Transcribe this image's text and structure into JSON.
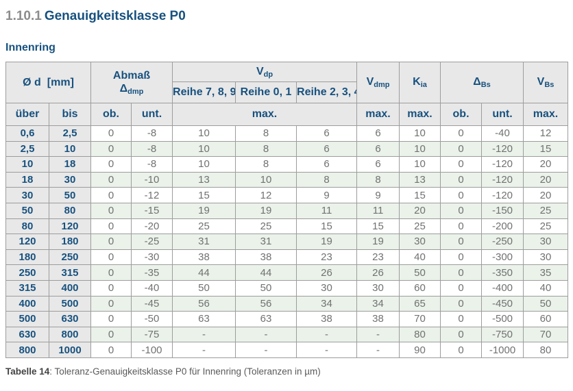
{
  "page": {
    "section_number": "1.10.1",
    "section_name": "Genauigkeitsklasse P0",
    "subtitle": "Innenring",
    "caption_label": "Tabelle 14",
    "caption_text": ": Toleranz-Genauigkeitsklasse P0 für Innenring (Toleranzen in µm)"
  },
  "colors": {
    "accent_blue": "#17517f",
    "header_gray": "#e8e8e8",
    "stripe_green": "#eaf2ea",
    "border_gray": "#9c9c9c",
    "value_gray": "#717171",
    "section_number_gray": "#8c8c8c"
  },
  "table": {
    "header": {
      "d_label": "Ø d",
      "d_unit": "[mm]",
      "abmass_label": "Abmaß",
      "abmass_symbol": "Δ",
      "abmass_sub": "dmp",
      "vdp_base": "V",
      "vdp_sub": "dp",
      "reihe_789": "Reihe 7, 8, 9",
      "reihe_01": "Reihe 0, 1",
      "reihe_234": "Reihe 2, 3, 4",
      "vdmp_base": "V",
      "vdmp_sub": "dmp",
      "kia_base": "K",
      "kia_sub": "ia",
      "dbs_base": "Δ",
      "dbs_sub": "Bs",
      "vbs_base": "V",
      "vbs_sub": "Bs",
      "ueber": "über",
      "bis": "bis",
      "ob": "ob.",
      "unt": "unt.",
      "max": "max."
    },
    "rows": [
      [
        "0,6",
        "2,5",
        "0",
        "-8",
        "10",
        "8",
        "6",
        "6",
        "10",
        "0",
        "-40",
        "12"
      ],
      [
        "2,5",
        "10",
        "0",
        "-8",
        "10",
        "8",
        "6",
        "6",
        "10",
        "0",
        "-120",
        "15"
      ],
      [
        "10",
        "18",
        "0",
        "-8",
        "10",
        "8",
        "6",
        "6",
        "10",
        "0",
        "-120",
        "20"
      ],
      [
        "18",
        "30",
        "0",
        "-10",
        "13",
        "10",
        "8",
        "8",
        "13",
        "0",
        "-120",
        "20"
      ],
      [
        "30",
        "50",
        "0",
        "-12",
        "15",
        "12",
        "9",
        "9",
        "15",
        "0",
        "-120",
        "20"
      ],
      [
        "50",
        "80",
        "0",
        "-15",
        "19",
        "19",
        "11",
        "11",
        "20",
        "0",
        "-150",
        "25"
      ],
      [
        "80",
        "120",
        "0",
        "-20",
        "25",
        "25",
        "15",
        "15",
        "25",
        "0",
        "-200",
        "25"
      ],
      [
        "120",
        "180",
        "0",
        "-25",
        "31",
        "31",
        "19",
        "19",
        "30",
        "0",
        "-250",
        "30"
      ],
      [
        "180",
        "250",
        "0",
        "-30",
        "38",
        "38",
        "23",
        "23",
        "40",
        "0",
        "-300",
        "30"
      ],
      [
        "250",
        "315",
        "0",
        "-35",
        "44",
        "44",
        "26",
        "26",
        "50",
        "0",
        "-350",
        "35"
      ],
      [
        "315",
        "400",
        "0",
        "-40",
        "50",
        "50",
        "30",
        "30",
        "60",
        "0",
        "-400",
        "40"
      ],
      [
        "400",
        "500",
        "0",
        "-45",
        "56",
        "56",
        "34",
        "34",
        "65",
        "0",
        "-450",
        "50"
      ],
      [
        "500",
        "630",
        "0",
        "-50",
        "63",
        "63",
        "38",
        "38",
        "70",
        "0",
        "-500",
        "60"
      ],
      [
        "630",
        "800",
        "0",
        "-75",
        "-",
        "-",
        "-",
        "-",
        "80",
        "0",
        "-750",
        "70"
      ],
      [
        "800",
        "1000",
        "0",
        "-100",
        "-",
        "-",
        "-",
        "-",
        "90",
        "0",
        "-1000",
        "80"
      ]
    ]
  }
}
